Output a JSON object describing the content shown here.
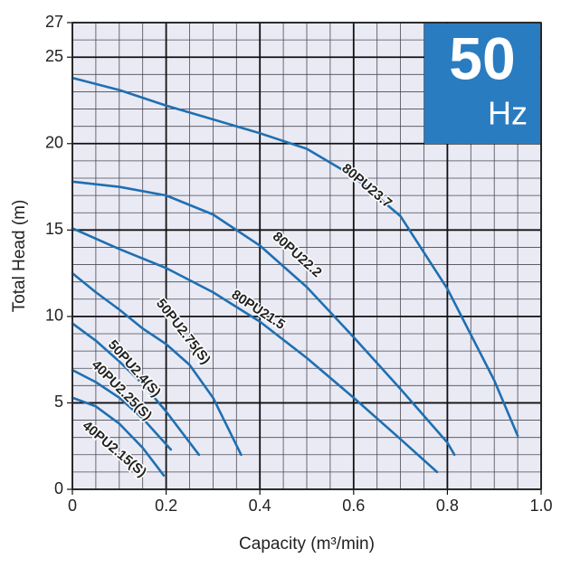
{
  "chart_data": {
    "type": "line",
    "xlabel": "Capacity (m³/min)",
    "ylabel": "Total Head (m)",
    "badge_number": "50",
    "badge_unit": "Hz",
    "xlim": [
      0,
      1.0
    ],
    "ylim": [
      0,
      27
    ],
    "xticks": [
      0,
      0.2,
      0.4,
      0.6,
      {
        "value": 1,
        "label": "1.0"
      },
      {
        "value": 0.8,
        "label": "0.8"
      }
    ],
    "yticks": [
      0,
      5,
      10,
      15,
      20,
      25,
      27
    ],
    "minor_grid": {
      "x": 0.05,
      "y": 1
    },
    "grid": true,
    "series": [
      {
        "name": "80PU23.7",
        "color": "#1f6fb2",
        "x": [
          0,
          0.1,
          0.2,
          0.3,
          0.4,
          0.5,
          0.6,
          0.7,
          0.8,
          0.9,
          0.95
        ],
        "values": [
          23.8,
          23.1,
          22.2,
          21.4,
          20.6,
          19.7,
          18.1,
          15.8,
          11.6,
          6.3,
          3.1
        ]
      },
      {
        "name": "80PU22.2",
        "color": "#1f6fb2",
        "x": [
          0,
          0.1,
          0.2,
          0.3,
          0.4,
          0.5,
          0.6,
          0.7,
          0.8,
          0.815
        ],
        "values": [
          17.8,
          17.5,
          17.0,
          15.9,
          14.1,
          11.7,
          8.8,
          5.8,
          2.7,
          2.0
        ]
      },
      {
        "name": "80PU21.5",
        "color": "#1f6fb2",
        "x": [
          0,
          0.1,
          0.2,
          0.3,
          0.4,
          0.5,
          0.6,
          0.7,
          0.778
        ],
        "values": [
          15.1,
          13.9,
          12.8,
          11.4,
          9.7,
          7.6,
          5.3,
          2.9,
          1.0
        ]
      },
      {
        "name": "50PU2.75(S)",
        "color": "#1f6fb2",
        "x": [
          0,
          0.05,
          0.1,
          0.15,
          0.2,
          0.25,
          0.3,
          0.36
        ],
        "values": [
          12.5,
          11.4,
          10.4,
          9.3,
          8.4,
          7.2,
          5.3,
          2.0
        ]
      },
      {
        "name": "50PU2.4(S)",
        "color": "#1f6fb2",
        "x": [
          0,
          0.05,
          0.1,
          0.15,
          0.2,
          0.27
        ],
        "values": [
          9.6,
          8.6,
          7.4,
          6.1,
          4.5,
          2.0
        ]
      },
      {
        "name": "40PU2.25(S)",
        "color": "#1f6fb2",
        "x": [
          0,
          0.05,
          0.1,
          0.15,
          0.21
        ],
        "values": [
          6.9,
          6.2,
          5.3,
          4.1,
          2.3
        ]
      },
      {
        "name": "40PU2.15(S)",
        "color": "#1f6fb2",
        "x": [
          0,
          0.05,
          0.1,
          0.15,
          0.195
        ],
        "values": [
          5.3,
          4.8,
          3.8,
          2.4,
          0.8
        ]
      }
    ]
  }
}
